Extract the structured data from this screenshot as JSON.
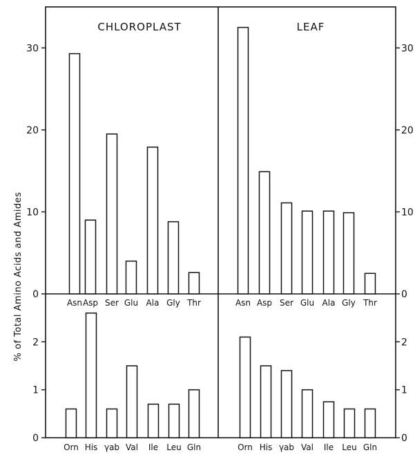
{
  "y_axis_label": "% of Total Amino Acids and Amides",
  "chart_data": [
    {
      "type": "bar",
      "title": "CHLOROPLAST",
      "categories": [
        "Asn",
        "Asp",
        "Ser",
        "Glu",
        "Ala",
        "Gly",
        "Thr"
      ],
      "values": [
        29.3,
        9.0,
        19.5,
        4.0,
        17.9,
        8.8,
        2.6
      ],
      "ylim": [
        0,
        35
      ],
      "yticks": [
        "0",
        "10",
        "20",
        "30"
      ],
      "grid": false
    },
    {
      "type": "bar",
      "title": "LEAF",
      "categories": [
        "Asn",
        "Asp",
        "Ser",
        "Glu",
        "Ala",
        "Gly",
        "Thr"
      ],
      "values": [
        32.5,
        14.9,
        11.1,
        10.1,
        10.1,
        9.9,
        2.5
      ],
      "ylim": [
        0,
        35
      ],
      "yticks": [
        "0",
        "10",
        "20",
        "30"
      ],
      "grid": false
    },
    {
      "type": "bar",
      "title": "",
      "categories": [
        "Orn",
        "His",
        "γab",
        "Val",
        "Ile",
        "Leu",
        "Gln"
      ],
      "values": [
        0.6,
        2.6,
        0.6,
        1.5,
        0.7,
        0.7,
        1.0
      ],
      "ylim": [
        0,
        3
      ],
      "yticks": [
        "0",
        "1",
        "2"
      ],
      "grid": false
    },
    {
      "type": "bar",
      "title": "",
      "categories": [
        "Orn",
        "His",
        "γab",
        "Val",
        "Ile",
        "Leu",
        "Gln"
      ],
      "values": [
        2.1,
        1.5,
        1.4,
        1.0,
        0.75,
        0.6,
        0.6
      ],
      "ylim": [
        0,
        3
      ],
      "yticks": [
        "0",
        "1",
        "2"
      ],
      "grid": false
    }
  ]
}
